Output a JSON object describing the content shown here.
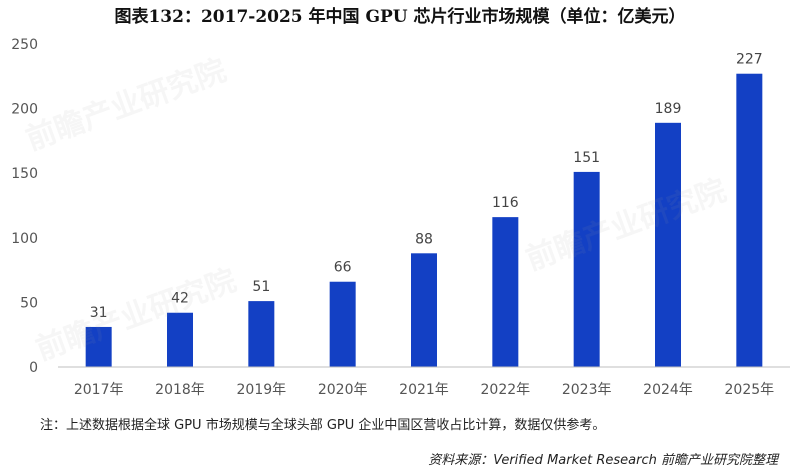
{
  "title": "图表132：2017-2025 年中国 GPU 芯片行业市场规模（单位：亿美元）",
  "note": "注：上述数据根据全球 GPU 市场规模与全球头部 GPU 企业中国区营收占比计算，数据仅供参考。",
  "source": "资料来源：Verified  Market  Research  前瞻产业研究院整理",
  "watermark_text": "前瞻产业研究院",
  "chart_data": {
    "type": "bar",
    "categories": [
      "2017年",
      "2018年",
      "2019年",
      "2020年",
      "2021年",
      "2022年",
      "2023年",
      "2024年",
      "2025年"
    ],
    "values": [
      31,
      42,
      51,
      66,
      88,
      116,
      151,
      189,
      227
    ],
    "title": "图表132：2017-2025 年中国 GPU 芯片行业市场规模（单位：亿美元）",
    "xlabel": "",
    "ylabel": "",
    "ylim": [
      0,
      250
    ],
    "yticks": [
      0,
      50,
      100,
      150,
      200,
      250
    ],
    "grid": false,
    "legend": "none",
    "bar_color": "#1340C4"
  }
}
